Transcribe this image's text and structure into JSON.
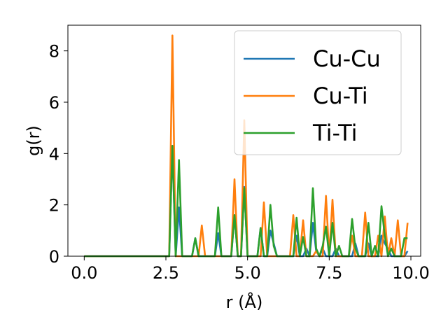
{
  "chart_data": {
    "type": "line",
    "title": "",
    "xlabel": "r (Å)",
    "ylabel": "g(r)",
    "xlim": [
      -0.5,
      10.3
    ],
    "ylim": [
      0,
      9.0
    ],
    "xticks": [
      0.0,
      2.5,
      5.0,
      7.5,
      10.0
    ],
    "xtick_labels": [
      "0.0",
      "2.5",
      "5.0",
      "7.5",
      "10.0"
    ],
    "yticks": [
      0,
      2,
      4,
      6,
      8
    ],
    "ytick_labels": [
      "0",
      "2",
      "4",
      "6",
      "8"
    ],
    "grid": false,
    "legend_position": "top-right",
    "series": [
      {
        "name": "Cu-Cu",
        "color": "#1f77b4",
        "points": [
          [
            0.0,
            0
          ],
          [
            2.6,
            0
          ],
          [
            2.7,
            4.3
          ],
          [
            2.8,
            0
          ],
          [
            2.9,
            1.9
          ],
          [
            3.0,
            0
          ],
          [
            3.3,
            0
          ],
          [
            3.4,
            0.7
          ],
          [
            3.5,
            0
          ],
          [
            4.0,
            0
          ],
          [
            4.1,
            0.9
          ],
          [
            4.2,
            0
          ],
          [
            4.5,
            0
          ],
          [
            4.6,
            1.6
          ],
          [
            4.7,
            0
          ],
          [
            4.8,
            0
          ],
          [
            4.9,
            2.7
          ],
          [
            5.0,
            0
          ],
          [
            5.3,
            0
          ],
          [
            5.4,
            1.1
          ],
          [
            5.5,
            0
          ],
          [
            5.6,
            0
          ],
          [
            5.7,
            1.0
          ],
          [
            5.8,
            0.5
          ],
          [
            5.9,
            0
          ],
          [
            6.4,
            0
          ],
          [
            6.5,
            0.8
          ],
          [
            6.6,
            0
          ],
          [
            6.7,
            0
          ],
          [
            6.8,
            0.3
          ],
          [
            6.9,
            0
          ],
          [
            7.0,
            1.3
          ],
          [
            7.1,
            0.2
          ],
          [
            7.2,
            0
          ],
          [
            7.3,
            0.3
          ],
          [
            7.4,
            0
          ],
          [
            7.6,
            0
          ],
          [
            7.7,
            0.3
          ],
          [
            7.8,
            0
          ],
          [
            8.2,
            0
          ],
          [
            8.3,
            0.5
          ],
          [
            8.4,
            0
          ],
          [
            8.6,
            0
          ],
          [
            8.7,
            0.5
          ],
          [
            8.8,
            0
          ],
          [
            9.0,
            0
          ],
          [
            9.1,
            0.8
          ],
          [
            9.2,
            0.5
          ],
          [
            9.3,
            0.3
          ],
          [
            9.4,
            0
          ],
          [
            9.8,
            0
          ],
          [
            9.9,
            0.2
          ]
        ]
      },
      {
        "name": "Cu-Ti",
        "color": "#ff7f0e",
        "points": [
          [
            0.0,
            0
          ],
          [
            2.6,
            0
          ],
          [
            2.7,
            8.6
          ],
          [
            2.8,
            0
          ],
          [
            3.4,
            0
          ],
          [
            3.5,
            0
          ],
          [
            3.6,
            1.2
          ],
          [
            3.7,
            0
          ],
          [
            4.5,
            0
          ],
          [
            4.6,
            3.0
          ],
          [
            4.7,
            0
          ],
          [
            4.8,
            0
          ],
          [
            4.9,
            5.3
          ],
          [
            5.0,
            0
          ],
          [
            5.4,
            0
          ],
          [
            5.5,
            2.1
          ],
          [
            5.6,
            0
          ],
          [
            6.3,
            0
          ],
          [
            6.4,
            1.6
          ],
          [
            6.5,
            0
          ],
          [
            6.6,
            0
          ],
          [
            6.7,
            1.4
          ],
          [
            6.8,
            0
          ],
          [
            7.0,
            0
          ],
          [
            7.1,
            0.2
          ],
          [
            7.2,
            0
          ],
          [
            7.3,
            0
          ],
          [
            7.4,
            2.35
          ],
          [
            7.5,
            0
          ],
          [
            7.6,
            2.2
          ],
          [
            7.7,
            0
          ],
          [
            8.0,
            0
          ],
          [
            8.1,
            0
          ],
          [
            8.2,
            0.8
          ],
          [
            8.3,
            0
          ],
          [
            8.5,
            0
          ],
          [
            8.6,
            1.7
          ],
          [
            8.7,
            0
          ],
          [
            8.9,
            0
          ],
          [
            9.0,
            0.8
          ],
          [
            9.1,
            0
          ],
          [
            9.2,
            1.55
          ],
          [
            9.3,
            0
          ],
          [
            9.4,
            0.7
          ],
          [
            9.5,
            0
          ],
          [
            9.6,
            1.4
          ],
          [
            9.7,
            0
          ],
          [
            9.8,
            0
          ],
          [
            9.9,
            1.3
          ]
        ]
      },
      {
        "name": "Ti-Ti",
        "color": "#2ca02c",
        "points": [
          [
            0.0,
            0
          ],
          [
            2.6,
            0
          ],
          [
            2.7,
            4.3
          ],
          [
            2.8,
            0
          ],
          [
            2.9,
            3.75
          ],
          [
            3.0,
            0
          ],
          [
            3.3,
            0
          ],
          [
            3.4,
            0.7
          ],
          [
            3.5,
            0
          ],
          [
            4.0,
            0
          ],
          [
            4.1,
            1.9
          ],
          [
            4.2,
            0
          ],
          [
            4.5,
            0
          ],
          [
            4.6,
            1.6
          ],
          [
            4.7,
            0
          ],
          [
            4.8,
            0
          ],
          [
            4.9,
            2.65
          ],
          [
            5.0,
            0
          ],
          [
            5.3,
            0
          ],
          [
            5.4,
            1.1
          ],
          [
            5.5,
            0
          ],
          [
            5.6,
            0
          ],
          [
            5.7,
            2.0
          ],
          [
            5.8,
            0.4
          ],
          [
            5.9,
            0
          ],
          [
            6.4,
            0
          ],
          [
            6.5,
            1.5
          ],
          [
            6.6,
            0
          ],
          [
            6.7,
            0.75
          ],
          [
            6.8,
            0
          ],
          [
            6.9,
            0
          ],
          [
            7.0,
            2.65
          ],
          [
            7.1,
            0.3
          ],
          [
            7.2,
            0
          ],
          [
            7.3,
            0.4
          ],
          [
            7.4,
            1.15
          ],
          [
            7.5,
            0
          ],
          [
            7.6,
            1.3
          ],
          [
            7.7,
            0
          ],
          [
            7.8,
            0.4
          ],
          [
            7.9,
            0
          ],
          [
            8.1,
            0
          ],
          [
            8.2,
            1.45
          ],
          [
            8.3,
            0.3
          ],
          [
            8.4,
            0
          ],
          [
            8.6,
            0
          ],
          [
            8.7,
            1.3
          ],
          [
            8.8,
            0
          ],
          [
            8.9,
            0.4
          ],
          [
            9.0,
            0
          ],
          [
            9.1,
            1.95
          ],
          [
            9.2,
            0.8
          ],
          [
            9.3,
            0
          ],
          [
            9.4,
            0.3
          ],
          [
            9.5,
            0
          ],
          [
            9.7,
            0
          ],
          [
            9.8,
            0.7
          ],
          [
            9.9,
            0.7
          ]
        ]
      }
    ]
  }
}
